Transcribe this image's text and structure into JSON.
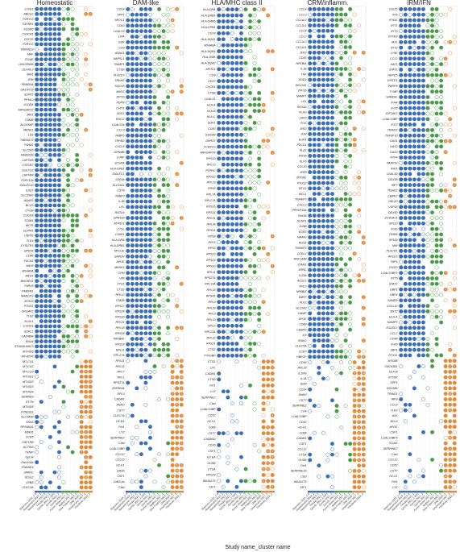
{
  "chart_data": {
    "type": "heatmap",
    "xlabel": "Study name_cluster name",
    "columns": [
      "Mancuso 2019_1 R",
      "Hasselmann 2019_1",
      "Hasselmann 2019_2",
      "Thrupp 2021_1",
      "Gerrits 2021_1 AD1",
      "Gerrits 2021_2",
      "Gerrits 2021_3",
      "Keren-Shaul 2017_1",
      "Mathys 2017_1",
      "Sala Frigerio 2019_1",
      "Olah 2020_1",
      "Krasemann 2017_1",
      "Friedman 2018_1"
    ],
    "column_colors": [
      "#3a6fb8",
      "#3a6fb8",
      "#3a6fb8",
      "#3a6fb8",
      "#3a6fb8",
      "#3a6fb8",
      "#4a9a4a",
      "#4a9a4a",
      "#4a9a4a",
      "#4a9a4a",
      "#e08a3c",
      "#e08a3c",
      "#e08a3c"
    ],
    "legend": {
      "human_color": "#3a6fb8",
      "ipsc_color": "#4a9a4a",
      "mouse_color": "#e08a3c"
    },
    "panels": [
      {
        "title": "Homeostatic",
        "genes": [
          "LYVE1",
          "ABCG2",
          "P2RY13",
          "TGFBR1",
          "KDSR0",
          "CX3CR1",
          "CSF1R",
          "P2RY12",
          "TMEM119",
          "MAF",
          "ITGAE",
          "LINC00996",
          "OLFML3",
          "BIN1",
          "JPM",
          "FRMD4A",
          "GALNT18",
          "SSXP2",
          "PPM1J",
          "IL10RA",
          "ARHGAP22",
          "JAK1",
          "ITM2B",
          "ALOX5AP",
          "MKNK1",
          "LSS",
          "TMEM173",
          "P4HA1",
          "SLC2A5",
          "FAM102B",
          "LAPTM5",
          "CSF1R2",
          "GOLFG3",
          "LAPTM4",
          "P2RY12b",
          "SIGLEC10",
          "IL6ST",
          "SLC15A3",
          "ADAP2",
          "BCO3",
          "CYGB",
          "DOCK8",
          "STAB1",
          "NKTR",
          "GLIPR1",
          "USP53",
          "TLE4",
          "CYSLTR1",
          "GPR34",
          "CD86",
          "FSCN1",
          "NAV6",
          "MS4A6A",
          "MED1",
          "BHLHE41",
          "P4RY6",
          "PMEPA1",
          "MARCKS",
          "ZFHX3",
          "PTGS1",
          "SRGAP2",
          "TLN2",
          "KLHL1",
          "CYFIP1",
          "SORL1",
          "CADMB4",
          "ENO4",
          "ST6GALNAC3",
          "MT-ND6",
          "MT-ATP6",
          "MT-CO1",
          "MT-CO2",
          "MT-CO3",
          "MT-ND1",
          "MT-ND2",
          "MT-ND3",
          "MT-ND4",
          "DENND3",
          "RTTN",
          "MT-ND5",
          "SYNDIG1",
          "SLC2A5b",
          "SSH2",
          "RPS6KA1",
          "Mblnt1",
          "CCR5",
          "CSF1RB",
          "ACTIN3",
          "TXNIP",
          "Gpr34",
          "Fam105a",
          "RNASE4",
          "SPARC",
          "IKSG2",
          "LRBA",
          "CLEC4A"
        ]
      },
      {
        "title": "DAM-like",
        "genes": [
          "CD14",
          "SPP1",
          "APOC1",
          "CD63",
          "LGALS3",
          "LIPA",
          "GSR",
          "CD9",
          "ASAH1",
          "NAPSL1",
          "RAMP1",
          "CTSD",
          "PLA2G7",
          "TREM2",
          "SOCS6",
          "MATG",
          "DPYD",
          "PDPN",
          "CHIT1",
          "SGK1",
          "RGCC",
          "LGALS3b",
          "CCL3",
          "FABP5",
          "TRPM2",
          "CXCL8",
          "GPNMB",
          "LITAF",
          "SCSRA",
          "HLA-DPB1",
          "SIGLEC1",
          "CD63b",
          "SLC11A1",
          "CST8",
          "FABP3",
          "IL1B",
          "LPL",
          "RGS16",
          "GPR183",
          "ATP6V1",
          "CTSL",
          "C3AR1",
          "HLA-DRA",
          "HLA-DRB1",
          "MYO1E",
          "GAPDH",
          "APOE",
          "MKNK1",
          "CPM",
          "VIM",
          "FTH1",
          "CTSS",
          "RPL13",
          "ITM2B",
          "RPS27",
          "RPS24",
          "RPS16",
          "RPL31",
          "RPL18",
          "RPS18",
          "TMSB4X",
          "RPS18",
          "RPL11",
          "RPL27A",
          "RPL41",
          "RPL15",
          "RPL7",
          "RPL1",
          "RPS27A",
          "ZNF804A",
          "RPL3",
          "CADM1",
          "ANKH",
          "CST7",
          "CLEC7A",
          "H2-D1",
          "Fth1",
          "LYZ",
          "SERPINE2",
          "Ctsd",
          "LGALS3BP",
          "CCL12",
          "CCL15",
          "H2-K1",
          "GAS6",
          "CSF1",
          "Cd63-ps",
          "Ctsb"
        ]
      },
      {
        "title": "HLA/MHC class II",
        "genes": [
          "HLA-DRA",
          "HLA-DRB1",
          "HLA-DRB5",
          "HLA-DPB1",
          "CD74",
          "HLA-DQA1",
          "MS4A6A",
          "HLA-DQB1",
          "HLA-DMA",
          "HLA-DQA2",
          "APOC1",
          "CD9",
          "CD37",
          "CXCR4",
          "CTSB",
          "LGALS1",
          "HLA-A",
          "HLA-B",
          "HLA-C",
          "SGK1",
          "CD83",
          "S100A8",
          "DHRS7",
          "FCER1G",
          "ARHGAP24",
          "RPS19",
          "RPL13",
          "PTPRC",
          "RPS12",
          "RPL18",
          "RPS6",
          "RPL7A",
          "RPL27A",
          "RPS15",
          "RPS14",
          "RPL31",
          "RPL34",
          "RPS11",
          "RPS8",
          "RPL5",
          "RPS3",
          "RPS23",
          "RPS24",
          "RPS10",
          "RPL11",
          "RPS27A",
          "RPL13A",
          "RPL15",
          "RPS4X",
          "RPL9",
          "RPL39",
          "RPL3",
          "RPL19",
          "NPC2",
          "RPL23A",
          "RPL32",
          "RPS21",
          "CTSZ",
          "TYROBP",
          "CTSS",
          "LPL",
          "CADM1",
          "CTSD",
          "Fth1",
          "LYZ",
          "SERPINE2",
          "Ctsd",
          "LGALS3BP",
          "CD52",
          "H2-K1",
          "Cd68",
          "CST7",
          "CADM1b",
          "CD36",
          "CSF1",
          "H2-EA",
          "GUSB",
          "CTSA",
          "RPS29",
          "B4GALT5",
          "IGF1"
        ]
      },
      {
        "title": "CRM/inflamm.",
        "genes": [
          "CCL4",
          "CCL3",
          "CCL4L2",
          "CCL3L1",
          "CCL8",
          "CCL2",
          "CCL3L3",
          "CCL4L1",
          "IER3",
          "CD83",
          "NFKBIA",
          "IL1B",
          "TNF",
          "SOD2",
          "BCL2A1",
          "ZFP36",
          "NAMPT",
          "LPL",
          "RGS16",
          "PLAU",
          "LAP3",
          "FOS",
          "IER2",
          "JUN",
          "EGR1",
          "PDCD1",
          "PLAT",
          "IER3b",
          "KLF6",
          "CCL20",
          "IER5",
          "ZFP36L",
          "PTGS2",
          "BTG2",
          "MCL1",
          "TNFAIP3",
          "CXCL2",
          "PPP1R15A",
          "RHOB",
          "DUSP1",
          "JUNB",
          "EGR3",
          "NR4A2",
          "RGS1",
          "TNFAIP2",
          "CCRL2",
          "RNF144B",
          "ICAM1",
          "IER5L",
          "IL23A",
          "ACSL1",
          "NFE2",
          "NFKBIZ",
          "MAFF",
          "PLK2",
          "SLC2A3",
          "HAMP",
          "APOE",
          "CD69",
          "CEBPD",
          "IL6",
          "IRAK2",
          "CLEC5A",
          "CCR7",
          "HBEGF",
          "CD44",
          "RPL28",
          "IL1RN",
          "IL1A",
          "B2M",
          "CD14",
          "ANKH",
          "CST7",
          "SERPINE2",
          "Ccl4",
          "LGALS3BP",
          "CD52",
          "H2-K1",
          "Cd68",
          "CADM1",
          "CSF1",
          "CCL12",
          "CTSA",
          "GUSB",
          "Fth1",
          "SERPINE2b",
          "Ctsd",
          "B4GALT5",
          "IGF1"
        ]
      },
      {
        "title": "IRM/IFN",
        "genes": [
          "ISG15",
          "IFI6",
          "IFI44L",
          "IFIT1",
          "IFIT3",
          "IFITM3",
          "MX1",
          "IFIT2",
          "LY6E",
          "CCL2",
          "XAF1",
          "STAT1",
          "HERC5",
          "EPSTI1",
          "PARP9",
          "TYMP",
          "SAMD9L",
          "IFI44",
          "IFI35",
          "EIF2AK2",
          "LGALS3BP",
          "IFI27",
          "TRIM22",
          "TNFSF10",
          "OAS1",
          "OAS2",
          "OAS3",
          "RTP4",
          "PARP14",
          "IFIH1",
          "LGALS9",
          "DDX58",
          "IRF7",
          "RSAD2",
          "CMPK2",
          "HELZ2",
          "USP18",
          "DDX60",
          "ZC3HAV1",
          "SP110",
          "IFI16",
          "TRIM5",
          "SP100",
          "NMI",
          "PLSCR1",
          "APOL6",
          "TAP1",
          "ISG20",
          "LGALS3BP2",
          "IFIT5",
          "STAT2",
          "GBP1",
          "GBP4",
          "SAMD9",
          "CXCL10",
          "BST2",
          "HLA-A",
          "NAMPT",
          "ISG20L2",
          "CCL7",
          "CD48",
          "IFI30",
          "ZBP1",
          "DTX3L",
          "MYD88",
          "UNC93B1",
          "HLA-B",
          "IFITM2",
          "SPP1",
          "DDX58b",
          "TRIM21",
          "IRF9",
          "CCL8",
          "TLR3",
          "AXL",
          "BCL6",
          "APOE",
          "CSF1",
          "LGALS3BP3",
          "ITGAX",
          "SERPINE2",
          "Ctsd",
          "CCL12",
          "CD52",
          "CST7",
          "H2-K1",
          "Fth1",
          "LYZ"
        ]
      }
    ]
  }
}
